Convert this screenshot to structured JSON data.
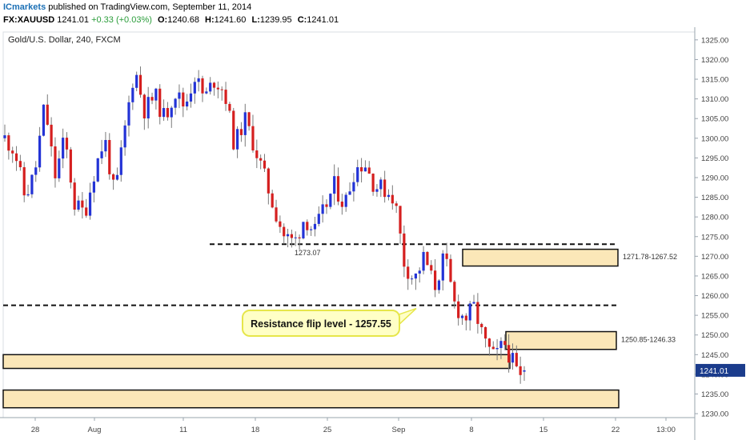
{
  "header": {
    "publisher": "ICmarkets",
    "published_text": "published on TradingView.com, September 11, 2014",
    "symbol": "FX:XAUUSD",
    "last": "1241.01",
    "change": "+0.33 (+0.03%)",
    "open_label": "O:",
    "open": "1240.68",
    "high_label": "H:",
    "high": "1241.60",
    "low_label": "L:",
    "low": "1239.95",
    "close_label": "C:",
    "close": "1241.01"
  },
  "chart_data": {
    "type": "candlestick",
    "title": "Gold/U.S. Dollar, 240, FXCM",
    "ylim": [
      1229,
      1327
    ],
    "y_ticks": [
      1230,
      1235,
      1240,
      1245,
      1250,
      1255,
      1260,
      1265,
      1270,
      1275,
      1280,
      1285,
      1290,
      1295,
      1300,
      1305,
      1310,
      1315,
      1320,
      1325
    ],
    "x_tick_labels": [
      "28",
      "Aug",
      "11",
      "18",
      "25",
      "Sep",
      "8",
      "15",
      "22",
      "13:00"
    ],
    "last_price": "1241.01",
    "colors": {
      "up": "#2333d6",
      "down": "#d51f1f",
      "zone_fill": "#fbe7b8",
      "callout_fill": "#ffffc6",
      "callout_border": "#e6e64a",
      "last_price_bg": "#1b3c8c"
    },
    "ohlc_anchors": [
      [
        1300,
        1305
      ],
      [
        1297,
        1285
      ],
      [
        1285,
        1291
      ],
      [
        1291,
        1309
      ],
      [
        1309,
        1290
      ],
      [
        1290,
        1300
      ],
      [
        1300,
        1283
      ],
      [
        1283,
        1281
      ],
      [
        1281,
        1292
      ],
      [
        1292,
        1300
      ],
      [
        1300,
        1285
      ],
      [
        1285,
        1302
      ],
      [
        1302,
        1318
      ],
      [
        1318,
        1307
      ],
      [
        1307,
        1311
      ],
      [
        1311,
        1305
      ],
      [
        1305,
        1312
      ],
      [
        1312,
        1308
      ],
      [
        1308,
        1316
      ],
      [
        1316,
        1310
      ],
      [
        1310,
        1315
      ],
      [
        1315,
        1312
      ],
      [
        1312,
        1298
      ],
      [
        1298,
        1305
      ],
      [
        1305,
        1298
      ],
      [
        1298,
        1290
      ],
      [
        1290,
        1282
      ],
      [
        1282,
        1275
      ],
      [
        1275,
        1273.5
      ],
      [
        1273.5,
        1280
      ],
      [
        1280,
        1276
      ],
      [
        1276,
        1282
      ],
      [
        1282,
        1288
      ],
      [
        1288,
        1283
      ],
      [
        1283,
        1292
      ],
      [
        1292,
        1294
      ],
      [
        1294,
        1288
      ],
      [
        1288,
        1287
      ],
      [
        1287,
        1285
      ],
      [
        1285,
        1268
      ],
      [
        1268,
        1264
      ],
      [
        1264,
        1270
      ],
      [
        1270,
        1262
      ],
      [
        1262,
        1270
      ],
      [
        1270,
        1258
      ],
      [
        1258,
        1254
      ],
      [
        1254,
        1257
      ],
      [
        1257,
        1248
      ],
      [
        1248,
        1244
      ],
      [
        1244,
        1248
      ],
      [
        1248,
        1242
      ],
      [
        1242,
        1236.5
      ],
      [
        1236.5,
        1241.01
      ]
    ],
    "horizontal_lines": [
      {
        "value": 1273.07,
        "label": "1273.07",
        "style": "dashed"
      },
      {
        "value": 1257.55,
        "label": "",
        "style": "dashed"
      }
    ],
    "zones": [
      {
        "top": 1271.78,
        "bottom": 1267.52,
        "label": "1271.78-1267.52"
      },
      {
        "top": 1250.85,
        "bottom": 1246.33,
        "label": "1250.85-1246.33"
      },
      {
        "top": 1245.0,
        "bottom": 1241.5,
        "label": ""
      },
      {
        "top": 1236.0,
        "bottom": 1231.5,
        "label": ""
      }
    ],
    "annotation": "Resistance flip level - 1257.55"
  }
}
